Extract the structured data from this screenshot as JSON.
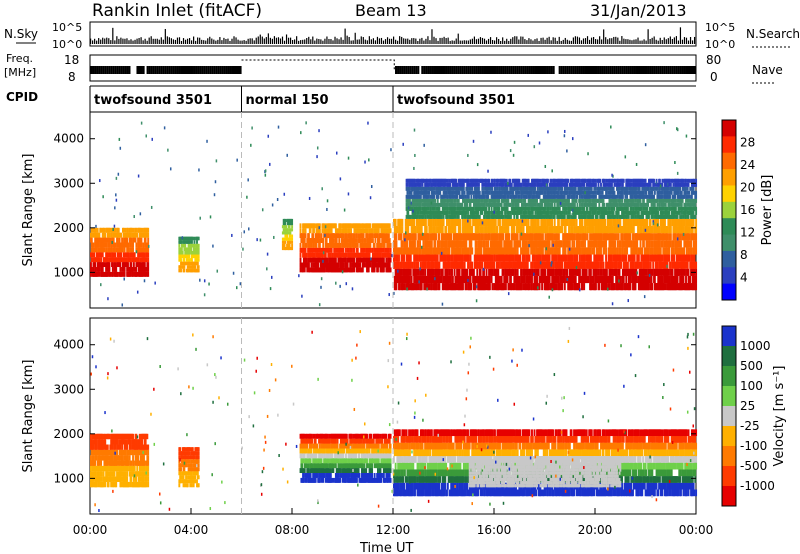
{
  "header": {
    "station": "Rankin Inlet (fitACF)",
    "beam": "Beam 13",
    "date": "31/Jan/2013"
  },
  "top_panels": {
    "nsky_label": "N.Sky",
    "nsky_top_tick": "10^5",
    "nsky_bottom_tick": "10^0",
    "nsearch_label": "N.Search",
    "nsearch_top_tick": "10^5",
    "nsearch_bottom_tick": "10^0",
    "freq_label": "Freq.",
    "freq_unit": "[MHz]",
    "freq_top_tick": "18",
    "freq_bottom_tick": "8",
    "nave_label": "Nave",
    "nave_top_tick": "80",
    "nave_bottom_tick": "0",
    "cpid_label": "CPID"
  },
  "cpid_segments": [
    {
      "name": "twofsound 3501",
      "start_hour": 0,
      "end_hour": 6
    },
    {
      "name": "normal 150",
      "start_hour": 6,
      "end_hour": 12
    },
    {
      "name": "twofsound 3501",
      "start_hour": 12,
      "end_hour": 24
    }
  ],
  "chart_data": [
    {
      "type": "heatmap",
      "panel": "power",
      "ylabel": "Slant Range [km]",
      "x_range_hours": [
        0,
        24
      ],
      "ylim": [
        200,
        4600
      ],
      "y_ticks": [
        1000,
        2000,
        3000,
        4000
      ],
      "colorbar": {
        "label": "Power [dB]",
        "ticks": [
          "28",
          "24",
          "20",
          "16",
          "12",
          "8",
          "4"
        ],
        "colors": [
          "#d40000",
          "#ff2a00",
          "#ff6a00",
          "#ff9f00",
          "#ffd200",
          "#9bd23c",
          "#2e8b57",
          "#3f8f6a",
          "#2f5f9f",
          "#2b3fbf",
          "#0000ff"
        ]
      },
      "regions": [
        {
          "x": [
            0.0,
            2.3
          ],
          "y": [
            900,
            2000
          ],
          "level": "high"
        },
        {
          "x": [
            3.5,
            4.3
          ],
          "y": [
            1000,
            1800
          ],
          "level": "mid"
        },
        {
          "x": [
            7.6,
            8.0
          ],
          "y": [
            1500,
            2200
          ],
          "level": "mid"
        },
        {
          "x": [
            8.3,
            11.9
          ],
          "y": [
            1000,
            2100
          ],
          "level": "high"
        },
        {
          "x": [
            12.0,
            24.0
          ],
          "y": [
            600,
            2200
          ],
          "level": "high"
        },
        {
          "x": [
            12.5,
            24.0
          ],
          "y": [
            2200,
            3100
          ],
          "level": "low"
        }
      ]
    },
    {
      "type": "heatmap",
      "panel": "velocity",
      "xlabel": "Time UT",
      "ylabel": "Slant Range [km]",
      "x_range_hours": [
        0,
        24
      ],
      "ylim": [
        200,
        4600
      ],
      "y_ticks": [
        1000,
        2000,
        3000,
        4000
      ],
      "x_ticks": [
        "00:00",
        "04:00",
        "08:00",
        "12:00",
        "16:00",
        "20:00",
        "00:00"
      ],
      "colorbar": {
        "label": "Velocity [m s⁻¹]",
        "ticks": [
          "1000",
          "500",
          "100",
          "25",
          "-25",
          "-100",
          "-500",
          "-1000"
        ],
        "colors": [
          "#1a33cc",
          "#1f6f3f",
          "#3a9a3a",
          "#6fd04a",
          "#c8c8c8",
          "#ffb000",
          "#ff7a00",
          "#ff3b00",
          "#e60000"
        ]
      },
      "regions": [
        {
          "x": [
            0.0,
            2.3
          ],
          "y": [
            800,
            2000
          ],
          "level": "negative"
        },
        {
          "x": [
            3.5,
            4.3
          ],
          "y": [
            800,
            1700
          ],
          "level": "negative"
        },
        {
          "x": [
            8.3,
            11.9
          ],
          "y": [
            900,
            2000
          ],
          "level": "mixed"
        },
        {
          "x": [
            12.0,
            24.0
          ],
          "y": [
            600,
            2100
          ],
          "level": "mixed"
        },
        {
          "x": [
            15.0,
            21.0
          ],
          "y": [
            800,
            1500
          ],
          "level": "zero"
        }
      ]
    }
  ]
}
